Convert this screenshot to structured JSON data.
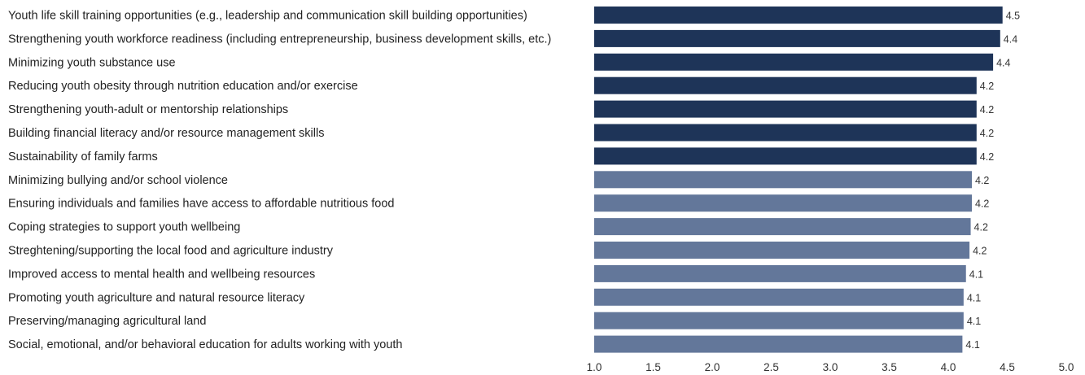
{
  "chart_data": {
    "type": "bar",
    "orientation": "horizontal",
    "title": "",
    "xlabel": "",
    "ylabel": "",
    "xlim": [
      1.0,
      5.0
    ],
    "ticks": [
      "1.0",
      "1.5",
      "2.0",
      "2.5",
      "3.0",
      "3.5",
      "4.0",
      "4.5",
      "5.0"
    ],
    "tick_values": [
      1.0,
      1.5,
      2.0,
      2.5,
      3.0,
      3.5,
      4.0,
      4.5,
      5.0
    ],
    "grid": false,
    "legend": "none",
    "colors": {
      "dark": "#1e3458",
      "light": "#63779a"
    },
    "bars": [
      {
        "label": "Youth life skill training opportunities (e.g., leadership and communication skill building opportunities)",
        "value": 4.46,
        "display": "4.5",
        "group": "dark"
      },
      {
        "label": "Strengthening youth workforce readiness (including entrepreneurship, business development skills, etc.)",
        "value": 4.44,
        "display": "4.4",
        "group": "dark"
      },
      {
        "label": "Minimizing youth substance use",
        "value": 4.38,
        "display": "4.4",
        "group": "dark"
      },
      {
        "label": "Reducing youth obesity through nutrition education and/or exercise",
        "value": 4.24,
        "display": "4.2",
        "group": "dark"
      },
      {
        "label": "Strengthening youth-adult or mentorship relationships",
        "value": 4.24,
        "display": "4.2",
        "group": "dark"
      },
      {
        "label": "Building financial literacy and/or resource management skills",
        "value": 4.24,
        "display": "4.2",
        "group": "dark"
      },
      {
        "label": "Sustainability of family farms",
        "value": 4.24,
        "display": "4.2",
        "group": "dark"
      },
      {
        "label": "Minimizing bullying and/or school violence",
        "value": 4.2,
        "display": "4.2",
        "group": "light"
      },
      {
        "label": "Ensuring individuals and families have access to affordable nutritious food",
        "value": 4.2,
        "display": "4.2",
        "group": "light"
      },
      {
        "label": "Coping strategies to support youth wellbeing",
        "value": 4.19,
        "display": "4.2",
        "group": "light"
      },
      {
        "label": "Streghtening/supporting the local food and agriculture industry",
        "value": 4.18,
        "display": "4.2",
        "group": "light"
      },
      {
        "label": "Improved access to mental health and wellbeing resources",
        "value": 4.15,
        "display": "4.1",
        "group": "light"
      },
      {
        "label": "Promoting youth agriculture and natural resource literacy",
        "value": 4.13,
        "display": "4.1",
        "group": "light"
      },
      {
        "label": "Preserving/managing agricultural land",
        "value": 4.13,
        "display": "4.1",
        "group": "light"
      },
      {
        "label": "Social, emotional, and/or behavioral education for adults working with youth",
        "value": 4.12,
        "display": "4.1",
        "group": "light"
      }
    ]
  }
}
